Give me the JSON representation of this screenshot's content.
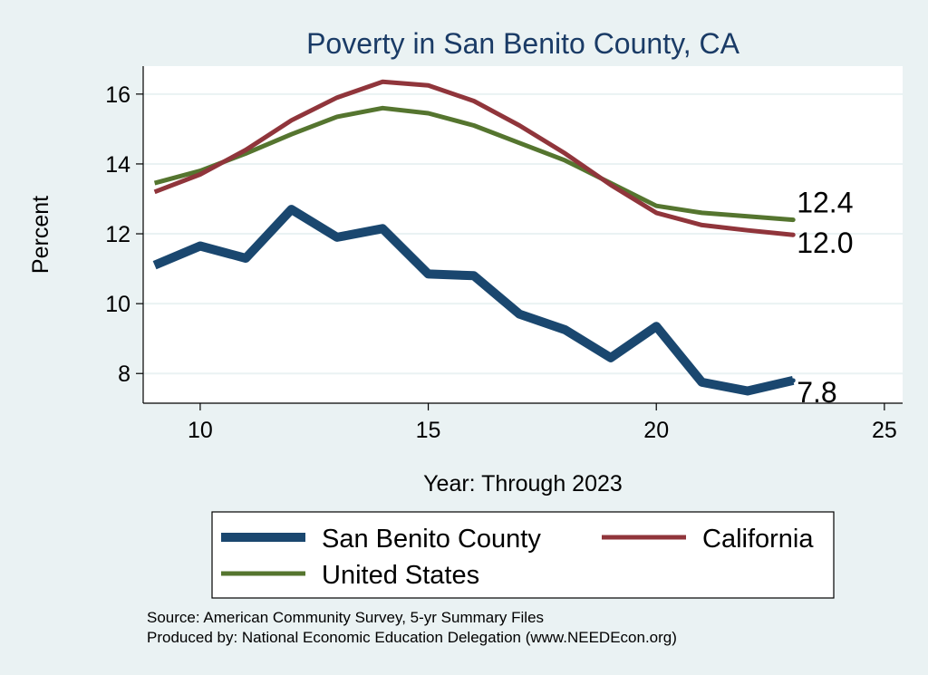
{
  "chart_data": {
    "type": "line",
    "title": "Poverty in San Benito County, CA",
    "xlabel": "Year: Through 2023",
    "ylabel": "Percent",
    "xlim": [
      8.75,
      25.4
    ],
    "ylim": [
      7.15,
      16.8
    ],
    "xticks": [
      10,
      15,
      20,
      25
    ],
    "yticks": [
      8,
      10,
      12,
      14,
      16
    ],
    "grid": true,
    "legend_position": "bottom",
    "series": [
      {
        "name": "San Benito County",
        "color": "#1a476f",
        "x": [
          9,
          10,
          11,
          12,
          13,
          14,
          15,
          16,
          17,
          18,
          19,
          20,
          21,
          22,
          23
        ],
        "values": [
          11.1,
          11.65,
          11.3,
          12.7,
          11.9,
          12.15,
          10.85,
          10.8,
          9.7,
          9.25,
          8.45,
          9.35,
          7.75,
          7.5,
          7.8
        ],
        "end_label": "7.8"
      },
      {
        "name": "California",
        "color": "#90353b",
        "x": [
          9,
          10,
          11,
          12,
          13,
          14,
          15,
          16,
          17,
          18,
          19,
          20,
          21,
          22,
          23
        ],
        "values": [
          13.2,
          13.7,
          14.4,
          15.25,
          15.9,
          16.35,
          16.25,
          15.8,
          15.1,
          14.3,
          13.4,
          12.6,
          12.25,
          12.1,
          11.97
        ],
        "end_label": "12.0"
      },
      {
        "name": "United States",
        "color": "#55752f",
        "x": [
          9,
          10,
          11,
          12,
          13,
          14,
          15,
          16,
          17,
          18,
          19,
          20,
          21,
          22,
          23
        ],
        "values": [
          13.45,
          13.8,
          14.3,
          14.85,
          15.35,
          15.6,
          15.45,
          15.1,
          14.6,
          14.1,
          13.45,
          12.8,
          12.6,
          12.5,
          12.4
        ],
        "end_label": "12.4"
      }
    ],
    "source_lines": [
      "Source: American Community Survey, 5-yr Summary Files",
      "Produced by: National Economic Education Delegation (www.NEEDEcon.org)"
    ]
  }
}
